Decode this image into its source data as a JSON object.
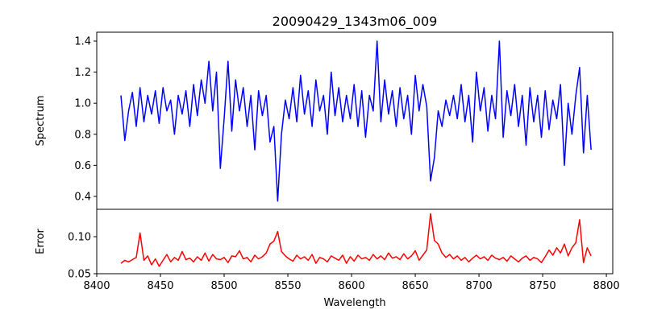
{
  "chart_data": [
    {
      "type": "line",
      "title": "20090429_1343m06_009",
      "xlabel": "",
      "ylabel": "Spectrum",
      "xlim": [
        8400,
        8805
      ],
      "ylim": [
        0.317,
        1.457
      ],
      "yticks": [
        0.4,
        0.6,
        0.8,
        1.0,
        1.2,
        1.4
      ],
      "ytick_labels": [
        "0.4",
        "0.6",
        "0.8",
        "1.0",
        "1.2",
        "1.4"
      ],
      "color": "#0000ff",
      "x_start": 8419,
      "x_step": 3,
      "values": [
        1.05,
        0.76,
        0.95,
        1.07,
        0.85,
        1.1,
        0.88,
        1.05,
        0.93,
        1.08,
        0.87,
        1.1,
        0.95,
        1.02,
        0.8,
        1.05,
        0.93,
        1.08,
        0.85,
        1.12,
        0.92,
        1.15,
        1.0,
        1.27,
        0.95,
        1.2,
        0.58,
        0.9,
        1.27,
        0.82,
        1.15,
        0.95,
        1.1,
        0.85,
        1.05,
        0.7,
        1.08,
        0.92,
        1.05,
        0.75,
        0.85,
        0.37,
        0.8,
        1.02,
        0.9,
        1.1,
        0.88,
        1.18,
        0.93,
        1.08,
        0.85,
        1.15,
        0.95,
        1.05,
        0.8,
        1.2,
        0.92,
        1.1,
        0.88,
        1.05,
        0.9,
        1.12,
        0.85,
        1.08,
        0.78,
        1.05,
        0.95,
        1.4,
        0.88,
        1.15,
        0.93,
        1.08,
        0.85,
        1.1,
        0.9,
        1.05,
        0.8,
        1.18,
        0.95,
        1.12,
        0.98,
        0.5,
        0.65,
        0.95,
        0.85,
        1.02,
        0.92,
        1.05,
        0.9,
        1.12,
        0.88,
        1.05,
        0.75,
        1.2,
        0.95,
        1.1,
        0.82,
        1.05,
        0.9,
        1.4,
        0.78,
        1.08,
        0.92,
        1.12,
        0.85,
        1.05,
        0.73,
        1.1,
        0.88,
        1.05,
        0.78,
        1.08,
        0.83,
        1.02,
        0.9,
        1.12,
        0.6,
        1.0,
        0.8,
        1.05,
        1.23,
        0.68,
        1.05,
        0.7
      ]
    },
    {
      "type": "line",
      "title": "",
      "xlabel": "Wavelength",
      "ylabel": "Error",
      "xlim": [
        8400,
        8805
      ],
      "ylim": [
        0.05,
        0.137
      ],
      "xticks": [
        8400,
        8450,
        8500,
        8550,
        8600,
        8650,
        8700,
        8750,
        8800
      ],
      "xtick_labels": [
        "8400",
        "8450",
        "8500",
        "8550",
        "8600",
        "8650",
        "8700",
        "8750",
        "8800"
      ],
      "yticks": [
        0.05,
        0.1
      ],
      "ytick_labels": [
        "0.05",
        "0.10"
      ],
      "color": "#ff0000",
      "x_start": 8419,
      "x_step": 3,
      "values": [
        0.064,
        0.068,
        0.066,
        0.069,
        0.072,
        0.105,
        0.068,
        0.074,
        0.062,
        0.07,
        0.06,
        0.068,
        0.076,
        0.066,
        0.072,
        0.068,
        0.08,
        0.069,
        0.071,
        0.066,
        0.073,
        0.068,
        0.078,
        0.067,
        0.076,
        0.07,
        0.069,
        0.072,
        0.065,
        0.074,
        0.073,
        0.081,
        0.07,
        0.072,
        0.066,
        0.075,
        0.07,
        0.073,
        0.078,
        0.09,
        0.094,
        0.107,
        0.08,
        0.074,
        0.07,
        0.067,
        0.075,
        0.07,
        0.073,
        0.068,
        0.076,
        0.064,
        0.072,
        0.07,
        0.066,
        0.074,
        0.071,
        0.068,
        0.075,
        0.064,
        0.073,
        0.067,
        0.075,
        0.07,
        0.072,
        0.068,
        0.076,
        0.07,
        0.074,
        0.069,
        0.078,
        0.071,
        0.073,
        0.069,
        0.077,
        0.07,
        0.074,
        0.081,
        0.068,
        0.075,
        0.082,
        0.131,
        0.095,
        0.09,
        0.078,
        0.072,
        0.076,
        0.07,
        0.074,
        0.068,
        0.072,
        0.066,
        0.071,
        0.075,
        0.07,
        0.073,
        0.068,
        0.075,
        0.071,
        0.069,
        0.072,
        0.067,
        0.074,
        0.07,
        0.066,
        0.071,
        0.074,
        0.068,
        0.072,
        0.07,
        0.065,
        0.073,
        0.082,
        0.075,
        0.085,
        0.078,
        0.09,
        0.074,
        0.085,
        0.092,
        0.123,
        0.065,
        0.085,
        0.074
      ]
    }
  ]
}
